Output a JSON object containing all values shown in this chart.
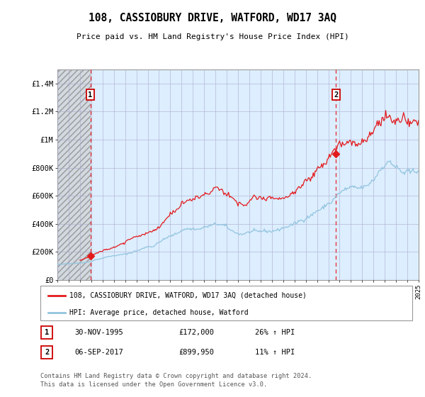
{
  "title": "108, CASSIOBURY DRIVE, WATFORD, WD17 3AQ",
  "subtitle": "Price paid vs. HM Land Registry's House Price Index (HPI)",
  "ylim": [
    0,
    1500000
  ],
  "yticks": [
    0,
    200000,
    400000,
    600000,
    800000,
    1000000,
    1200000,
    1400000
  ],
  "ytick_labels": [
    "£0",
    "£200K",
    "£400K",
    "£600K",
    "£800K",
    "£1M",
    "£1.2M",
    "£1.4M"
  ],
  "x_start_year": 1993,
  "x_end_year": 2025,
  "sale1_date": 1995.92,
  "sale1_price": 172000,
  "sale2_date": 2017.68,
  "sale2_price": 899950,
  "hpi_line_color": "#92c5de",
  "price_line_color": "#e31a1c",
  "dashed_vline_color": "#e31a1c",
  "background_color": "#ffffff",
  "chart_bg_color": "#ddeeff",
  "grid_color": "#aaaacc",
  "legend_label1": "108, CASSIOBURY DRIVE, WATFORD, WD17 3AQ (detached house)",
  "legend_label2": "HPI: Average price, detached house, Watford",
  "note1_num": "1",
  "note1_date": "30-NOV-1995",
  "note1_price": "£172,000",
  "note1_hpi": "26% ↑ HPI",
  "note2_num": "2",
  "note2_date": "06-SEP-2017",
  "note2_price": "£899,950",
  "note2_hpi": "11% ↑ HPI",
  "footer": "Contains HM Land Registry data © Crown copyright and database right 2024.\nThis data is licensed under the Open Government Licence v3.0."
}
